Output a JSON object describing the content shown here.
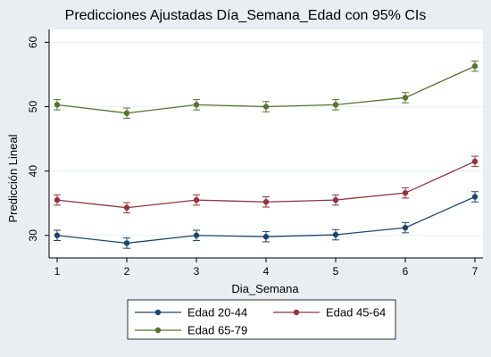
{
  "chart_data": {
    "type": "line",
    "title": "Predicciones Ajustadas Día_Semana_Edad con 95% CIs",
    "xlabel": "Dia_Semana",
    "ylabel": "Predicción Lineal",
    "x": [
      1,
      2,
      3,
      4,
      5,
      6,
      7
    ],
    "xlim": [
      1,
      7
    ],
    "ylim": [
      26.5,
      62
    ],
    "yticks": [
      30,
      40,
      50,
      60
    ],
    "grid": "horizontal",
    "legend_position": "bottom",
    "series": [
      {
        "name": "Edad 20-44",
        "color": "#1a476f",
        "values": [
          30.0,
          28.8,
          30.0,
          29.8,
          30.1,
          31.2,
          36.0
        ],
        "ci_low": [
          29.2,
          28.0,
          29.2,
          29.0,
          29.3,
          30.4,
          35.2
        ],
        "ci_high": [
          30.8,
          29.6,
          30.8,
          30.6,
          30.9,
          32.0,
          36.8
        ]
      },
      {
        "name": "Edad 45-64",
        "color": "#90353b",
        "values": [
          35.5,
          34.3,
          35.5,
          35.2,
          35.5,
          36.6,
          41.5
        ],
        "ci_low": [
          34.7,
          33.5,
          34.7,
          34.4,
          34.7,
          35.8,
          40.7
        ],
        "ci_high": [
          36.3,
          35.1,
          36.3,
          36.0,
          36.3,
          37.4,
          42.3
        ]
      },
      {
        "name": "Edad 65-79",
        "color": "#55752f",
        "values": [
          50.3,
          49.0,
          50.3,
          50.0,
          50.3,
          51.4,
          56.3
        ],
        "ci_low": [
          49.5,
          48.2,
          49.5,
          49.2,
          49.5,
          50.6,
          55.5
        ],
        "ci_high": [
          51.1,
          49.8,
          51.1,
          50.8,
          51.1,
          52.2,
          57.1
        ]
      }
    ]
  }
}
